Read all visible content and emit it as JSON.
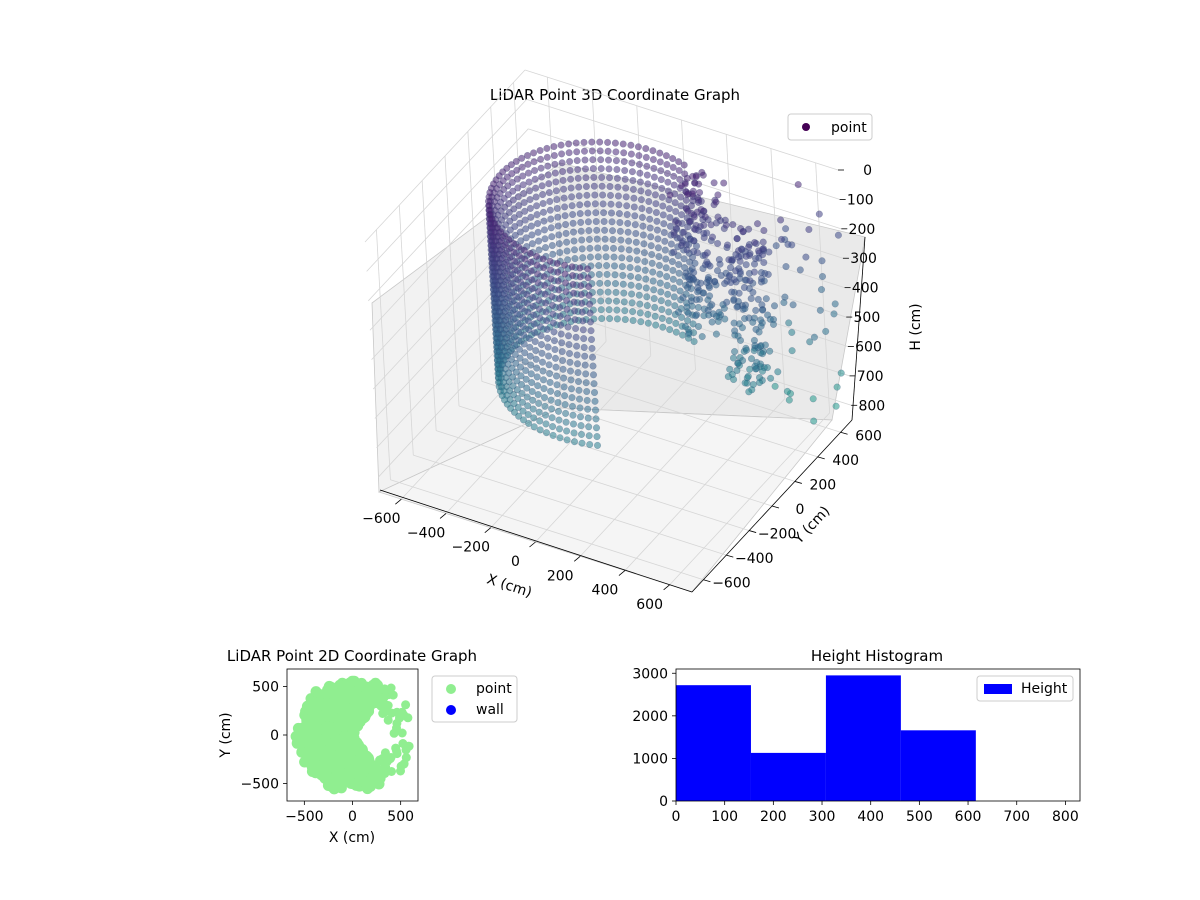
{
  "chart_data": [
    {
      "type": "scatter",
      "projection": "3d",
      "title": "LiDAR Point 3D Coordinate Graph",
      "xlabel": "X (cm)",
      "ylabel": "Y (cm)",
      "zlabel": "H (cm)",
      "xlim": [
        -700,
        700
      ],
      "ylim": [
        -700,
        700
      ],
      "zlim": [
        0,
        850
      ],
      "z_inverted": true,
      "xticks": [
        -600,
        -400,
        -200,
        0,
        200,
        400,
        600
      ],
      "yticks": [
        -600,
        -400,
        -200,
        0,
        200,
        400,
        600
      ],
      "zticks": [
        0,
        100,
        200,
        300,
        400,
        500,
        600,
        700,
        800
      ],
      "colormap": "viridis",
      "grid": true,
      "legend_position": "top-right",
      "series": [
        {
          "name": "point",
          "color": "#440154",
          "clusters": [
            {
              "shape": "arc-wall",
              "radius": 450,
              "angle_range_deg": [
                70,
                290
              ],
              "height_range": [
                0,
                600
              ]
            },
            {
              "shape": "blob",
              "x": 250,
              "y": 350,
              "height_range": [
                0,
                500
              ]
            },
            {
              "shape": "blob",
              "x": 450,
              "y": 350,
              "height_range": [
                100,
                650
              ]
            },
            {
              "shape": "sparse",
              "x": 550,
              "y": 600,
              "height_range": [
                0,
                800
              ]
            }
          ]
        }
      ]
    },
    {
      "type": "scatter",
      "title": "LiDAR Point 2D Coordinate Graph",
      "xlabel": "X (cm)",
      "ylabel": "Y (cm)",
      "xlim": [
        -680,
        680
      ],
      "ylim": [
        -680,
        680
      ],
      "xticks": [
        -500,
        0,
        500
      ],
      "yticks": [
        -500,
        0,
        500
      ],
      "legend_position": "outside-right",
      "series": [
        {
          "name": "point",
          "color": "#90ee90",
          "region": {
            "center": [
              0,
              0
            ],
            "radius": 580,
            "angle_range_deg": [
              55,
              305
            ]
          }
        },
        {
          "name": "wall",
          "color": "#0000ff",
          "values": []
        }
      ]
    },
    {
      "type": "bar",
      "subtype": "histogram",
      "title": "Height Histogram",
      "xlim": [
        0,
        830
      ],
      "ylim": [
        0,
        3100
      ],
      "xticks": [
        0,
        100,
        200,
        300,
        400,
        500,
        600,
        700,
        800
      ],
      "yticks": [
        0,
        1000,
        2000,
        3000
      ],
      "bin_edges": [
        0,
        154,
        308,
        462,
        616
      ],
      "values": [
        2720,
        1130,
        2950,
        1660
      ],
      "legend_position": "top-right",
      "series": [
        {
          "name": "Height",
          "color": "#0000ff"
        }
      ]
    }
  ]
}
